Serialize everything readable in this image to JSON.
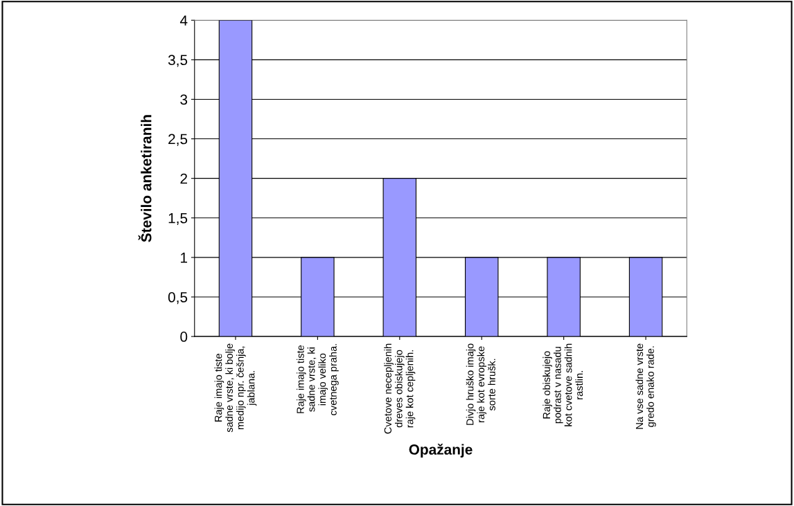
{
  "chart_data": {
    "type": "bar",
    "xlabel": "Opažanje",
    "ylabel": "Število anketiranih",
    "categories": [
      "Raje imajo tiste\nsadne vrste, ki bolje\nmedijo npr. češnja,\njablana.",
      "Raje imajo tiste\nsadne vrste, ki\nimajo veliko\ncvetnega praha.",
      "Cvetove necepljenih\ndreves obiskujejo\nraje kot cepljenih.",
      "Divjo hruško imajo\nraje kot evropske\nsorte hrušk.",
      "Raje obiskujejo\npodrast v nasadu\nkot cvetove sadnih\nrastlin.",
      "Na vse sadne vrste\ngredo enako rade."
    ],
    "values": [
      4,
      1,
      2,
      1,
      1,
      1
    ],
    "color": "#9999ff",
    "ylim": [
      0,
      4
    ],
    "yticks": [
      0,
      {
        "value": 0.5,
        "label": "0,5"
      },
      1,
      {
        "value": 1.5,
        "label": "1,5"
      },
      2,
      {
        "value": 2.5,
        "label": "2,5"
      },
      3,
      {
        "value": 3.5,
        "label": "3,5"
      },
      4
    ],
    "grid": "y"
  }
}
